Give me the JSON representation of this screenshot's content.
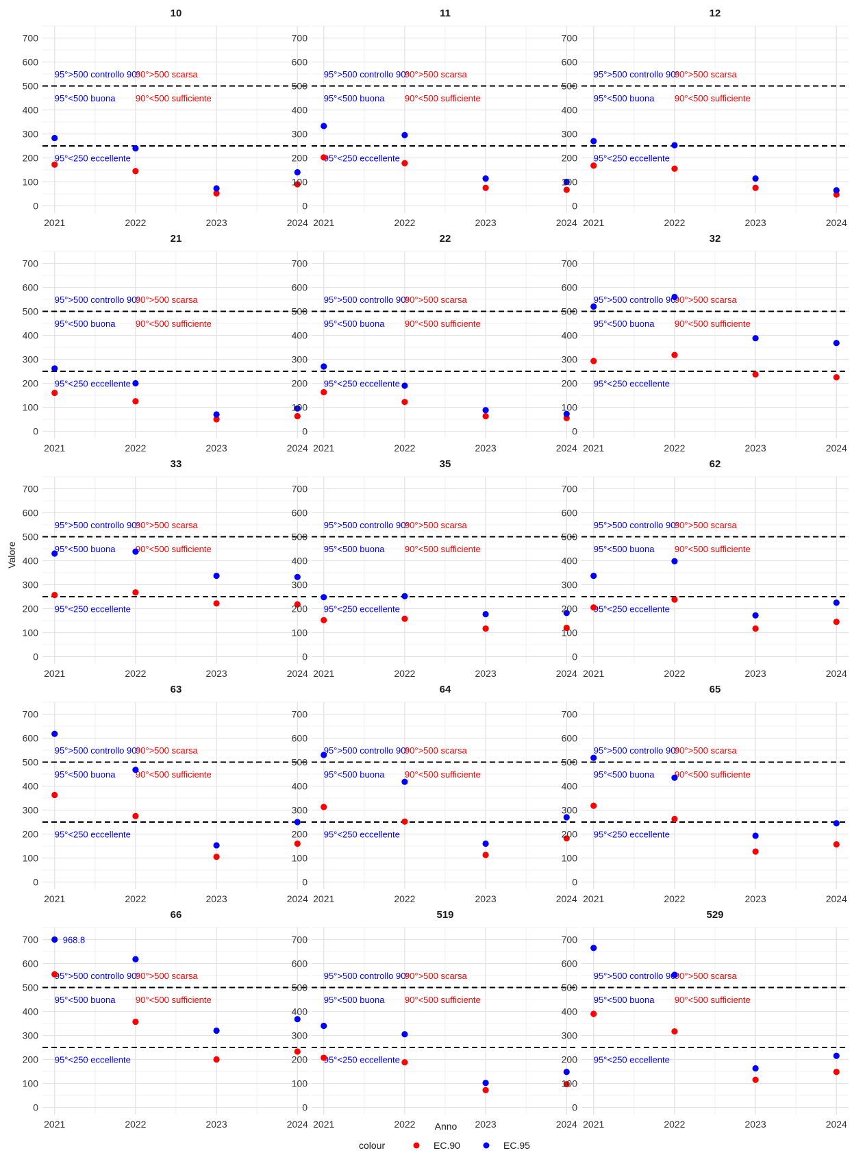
{
  "chart_data": {
    "type": "scatter",
    "xlabel": "Anno",
    "ylabel": "Valore",
    "x": [
      "2021",
      "2022",
      "2023",
      "2024"
    ],
    "yticks": [
      0,
      100,
      200,
      300,
      400,
      500,
      600,
      700
    ],
    "ylim": [
      -30,
      750
    ],
    "grid": true,
    "legend": {
      "title": "colour",
      "placement": "bottom",
      "entries": [
        {
          "name": "EC.90",
          "color": "#ff0000"
        },
        {
          "name": "EC.95",
          "color": "#0000ff"
        }
      ]
    },
    "reference_lines": [
      {
        "y": 500,
        "style": "dashed"
      },
      {
        "y": 250,
        "style": "dashed"
      }
    ],
    "annotations": [
      {
        "text": "95°>500 controllo 90°",
        "x": "2021",
        "y": 550,
        "color": "#0000ff"
      },
      {
        "text": "90°>500 scarsa",
        "x": "2022",
        "y": 550,
        "color": "#ff0000"
      },
      {
        "text": "95°<500 buona",
        "x": "2021",
        "y": 450,
        "color": "#0000ff"
      },
      {
        "text": "90°<500 sufficiente",
        "x": "2022",
        "y": 450,
        "color": "#ff0000"
      },
      {
        "text": "95°<250 eccellente",
        "x": "2021",
        "y": 200,
        "color": "#0000ff"
      }
    ],
    "panels": [
      {
        "title": "10",
        "EC90": [
          172,
          145,
          52,
          90
        ],
        "EC95": [
          283,
          240,
          73,
          140
        ]
      },
      {
        "title": "11",
        "EC90": [
          202,
          178,
          75,
          67
        ],
        "EC95": [
          333,
          295,
          114,
          100
        ]
      },
      {
        "title": "12",
        "EC90": [
          168,
          155,
          75,
          47
        ],
        "EC95": [
          270,
          253,
          114,
          65
        ]
      },
      {
        "title": "21",
        "EC90": [
          160,
          125,
          50,
          63
        ],
        "EC95": [
          262,
          200,
          70,
          95
        ]
      },
      {
        "title": "22",
        "EC90": [
          163,
          122,
          63,
          55
        ],
        "EC95": [
          270,
          190,
          88,
          72
        ]
      },
      {
        "title": "32",
        "EC90": [
          293,
          318,
          237,
          225
        ],
        "EC95": [
          520,
          560,
          388,
          368
        ]
      },
      {
        "title": "33",
        "EC90": [
          257,
          268,
          222,
          218
        ],
        "EC95": [
          430,
          438,
          337,
          332
        ]
      },
      {
        "title": "35",
        "EC90": [
          152,
          158,
          117,
          120
        ],
        "EC95": [
          248,
          252,
          177,
          182
        ]
      },
      {
        "title": "62",
        "EC90": [
          205,
          238,
          117,
          145
        ],
        "EC95": [
          337,
          398,
          172,
          225
        ]
      },
      {
        "title": "63",
        "EC90": [
          363,
          275,
          105,
          160
        ],
        "EC95": [
          618,
          468,
          153,
          250
        ]
      },
      {
        "title": "64",
        "EC90": [
          313,
          252,
          113,
          182
        ],
        "EC95": [
          530,
          418,
          160,
          270
        ]
      },
      {
        "title": "65",
        "EC90": [
          318,
          263,
          127,
          157
        ],
        "EC95": [
          518,
          435,
          193,
          245
        ]
      },
      {
        "title": "66",
        "EC90": [
          555,
          357,
          200,
          233
        ],
        "EC95": [
          700,
          618,
          320,
          368
        ],
        "labels": [
          {
            "index": 0,
            "series": "EC.95",
            "text": "968.8"
          }
        ]
      },
      {
        "title": "519",
        "EC90": [
          207,
          188,
          72,
          97
        ],
        "EC95": [
          340,
          305,
          102,
          148
        ]
      },
      {
        "title": "529",
        "EC90": [
          390,
          317,
          115,
          148
        ],
        "EC95": [
          665,
          553,
          163,
          215
        ]
      }
    ]
  }
}
